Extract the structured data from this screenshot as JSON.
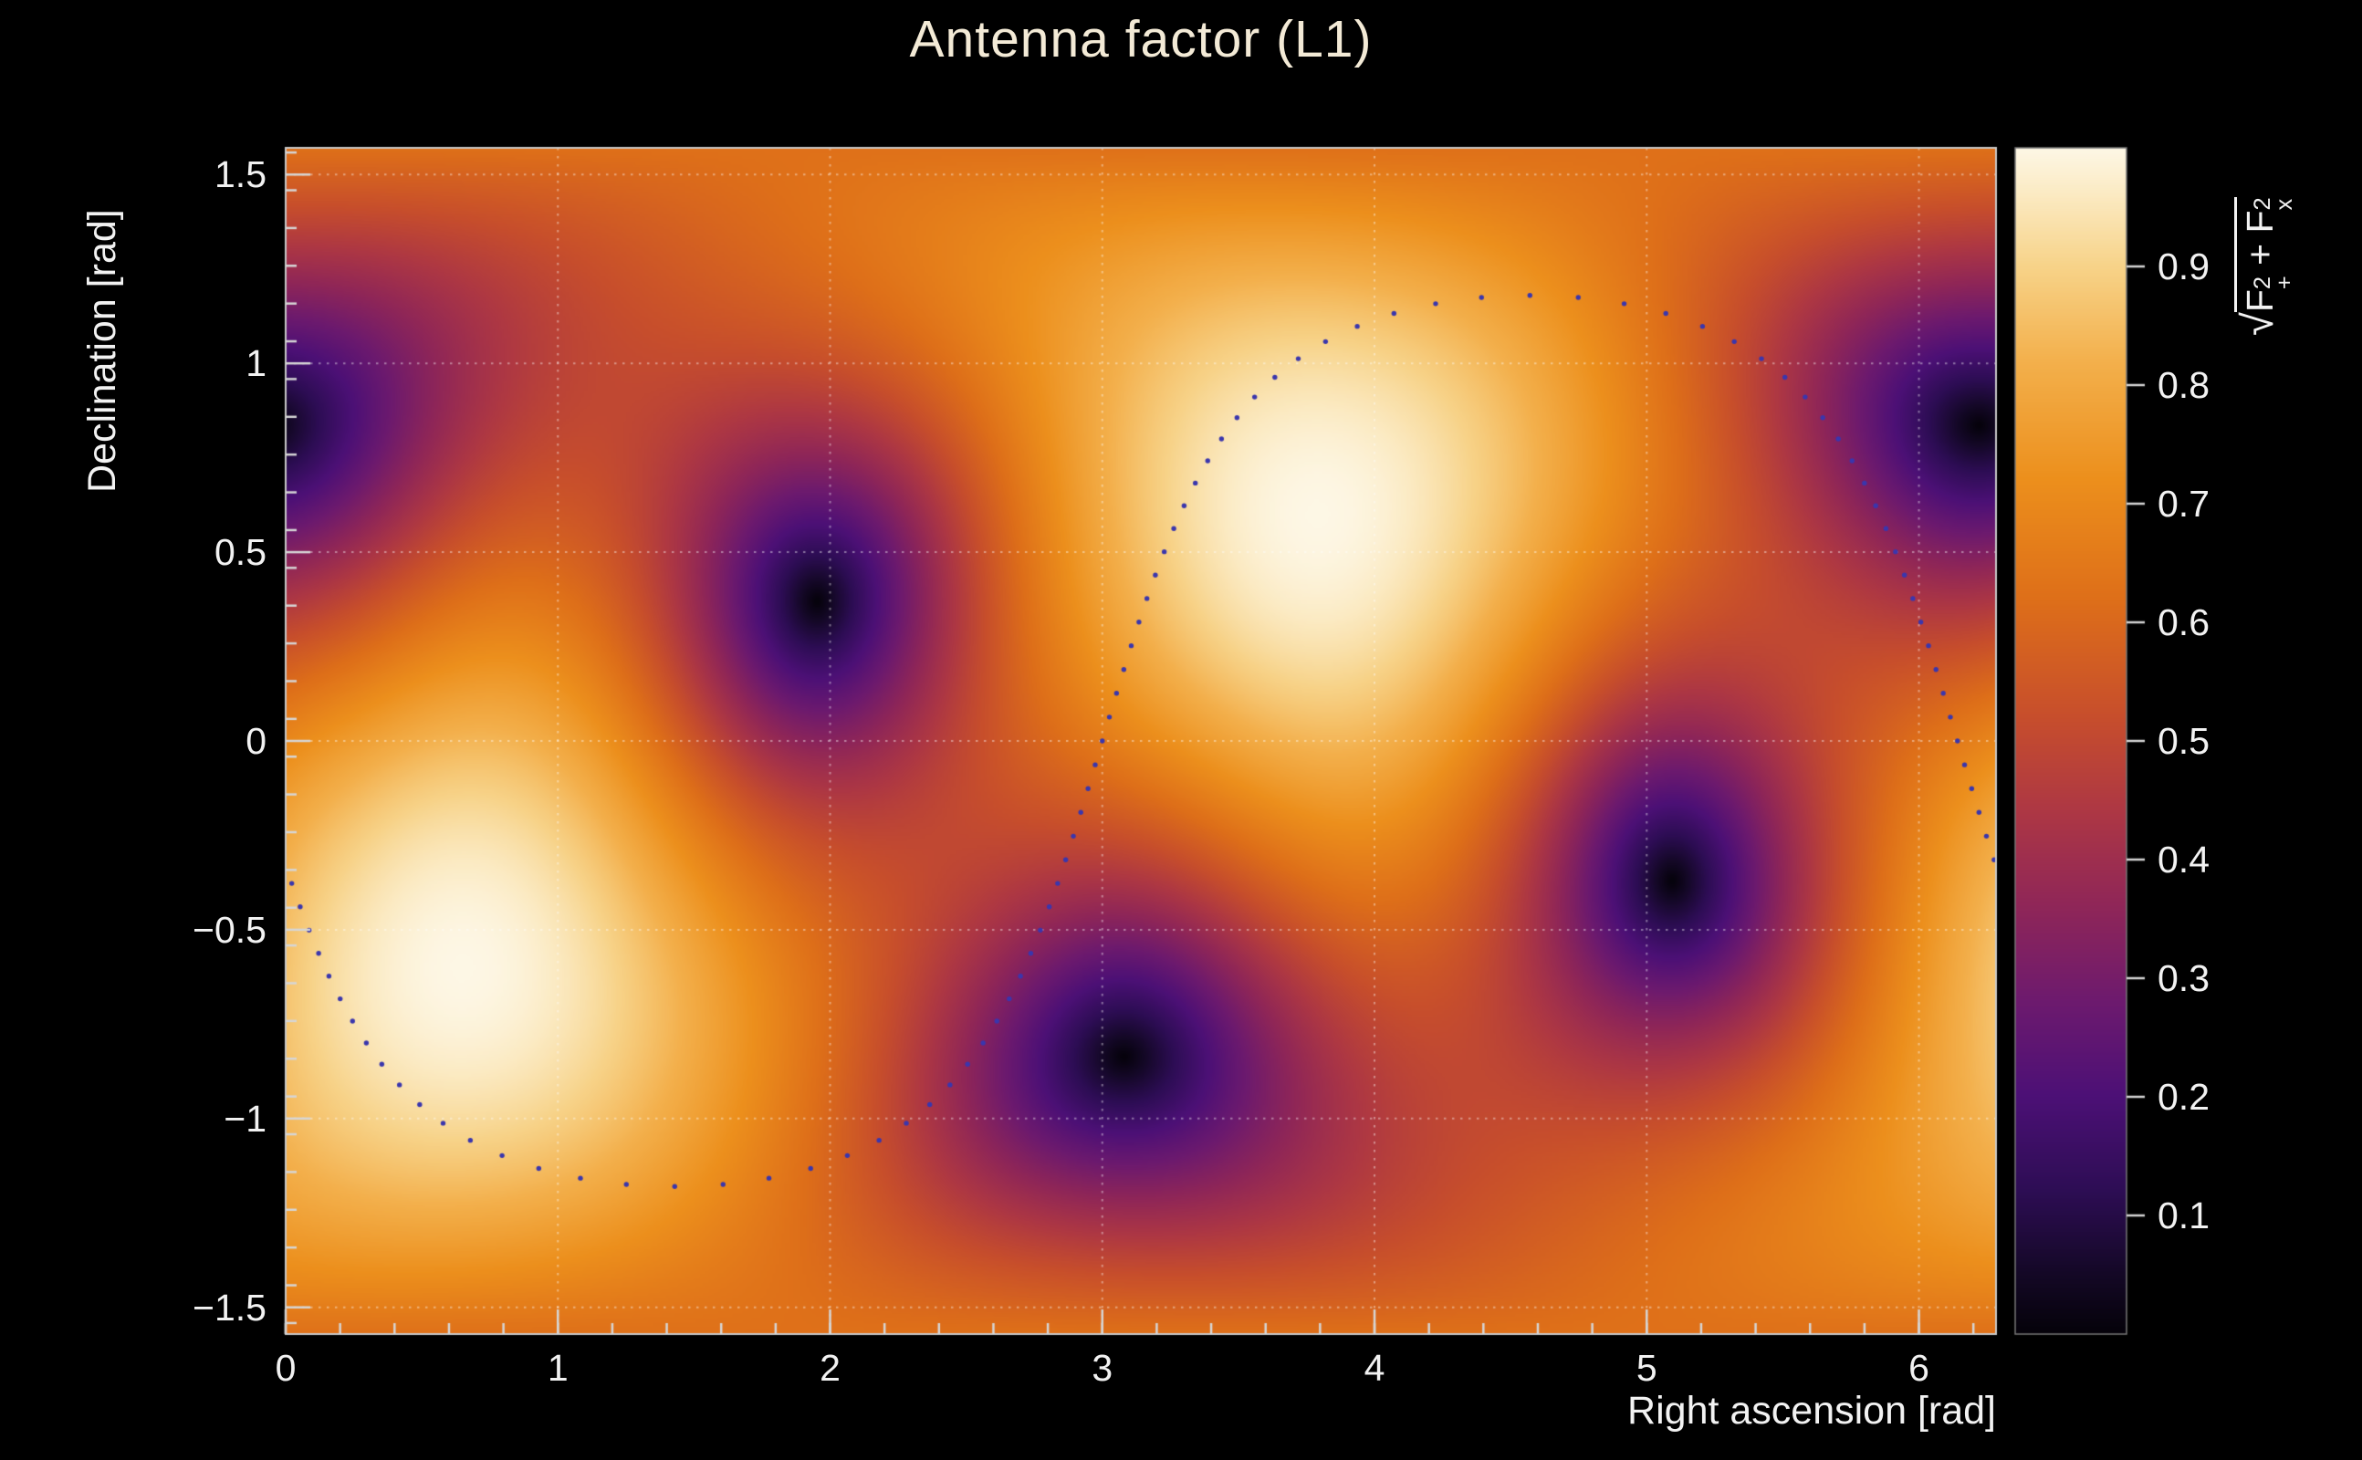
{
  "chart_data": {
    "type": "heatmap",
    "title": "Antenna factor (L1)",
    "xlabel": "Right ascension [rad]",
    "ylabel": "Declination [rad]",
    "x_range": [
      0,
      6.28319
    ],
    "y_range": [
      -1.5708,
      1.5708
    ],
    "x_ticks": {
      "values": [
        0,
        1,
        2,
        3,
        4,
        5,
        6
      ],
      "labels": [
        "0",
        "1",
        "2",
        "3",
        "4",
        "5",
        "6"
      ],
      "minor_step": 0.2
    },
    "y_ticks": {
      "values": [
        -1.5,
        -1,
        -0.5,
        0,
        0.5,
        1,
        1.5
      ],
      "labels": [
        "−1.5",
        "−1",
        "−0.5",
        "0",
        "0.5",
        "1",
        "1.5"
      ],
      "minor_step": 0.1
    },
    "colorbar": {
      "min": 0,
      "max": 1,
      "tick_values": [
        0.1,
        0.2,
        0.3,
        0.4,
        0.5,
        0.6,
        0.7,
        0.8,
        0.9
      ],
      "tick_labels": [
        "0.1",
        "0.2",
        "0.3",
        "0.4",
        "0.5",
        "0.6",
        "0.7",
        "0.8",
        "0.9"
      ],
      "label_plain": "sqrt(F_+^2 + F_x^2)",
      "label_parts": {
        "radical": "√",
        "f": "F",
        "sup": "2",
        "sub_plus": "+",
        "plus": " + ",
        "sub_x": "x"
      }
    },
    "palette": [
      [
        0.0,
        "#05020a"
      ],
      [
        0.05,
        "#140826"
      ],
      [
        0.12,
        "#2d0d54"
      ],
      [
        0.2,
        "#4c1076"
      ],
      [
        0.28,
        "#6d1a6e"
      ],
      [
        0.36,
        "#8f2658"
      ],
      [
        0.44,
        "#ad3744"
      ],
      [
        0.52,
        "#c74e2c"
      ],
      [
        0.62,
        "#de6f19"
      ],
      [
        0.72,
        "#ec8f1c"
      ],
      [
        0.82,
        "#f3b04c"
      ],
      [
        0.9,
        "#f7d389"
      ],
      [
        0.96,
        "#fbeac2"
      ],
      [
        1.0,
        "#fdf7e6"
      ]
    ],
    "field": {
      "model": "interferometer antenna pattern F = sqrt(Fplus^2 + Fcross^2), Fplus = 0.5*(1+cos^2(theta))*cos(2*phi), Fcross = cos(theta)*sin(2*phi)",
      "zenith_ra": 0.65,
      "zenith_dec": -0.6,
      "psi_rad": -0.3316,
      "maxima": [
        {
          "ra": 0.65,
          "dec": -0.6,
          "F": 1.0
        },
        {
          "ra": 3.79,
          "dec": 0.6,
          "F": 1.0
        }
      ],
      "minima": [
        {
          "ra": 1.95,
          "dec": 0.4,
          "F": 0.0
        },
        {
          "ra": 6.22,
          "dec": 0.85,
          "F": 0.0
        },
        {
          "ra": 5.09,
          "dec": -0.4,
          "F": 0.0
        },
        {
          "ra": 3.05,
          "dec": -0.85,
          "F": 0.0
        }
      ],
      "background_typical_F": 0.6
    },
    "track": {
      "type": "great-circle-dotted",
      "inclination_rad": 1.18,
      "ascending_node_ra": 3.0,
      "n_points": 92,
      "color": "#3a36ad",
      "dot_radius": 2.7
    },
    "grid": {
      "color": "rgba(255,255,255,0.42)",
      "dash": [
        2.5,
        6.5
      ]
    },
    "axis_color": "#d6d6d6",
    "frame_color": "#c9c9c9",
    "text_color": "#f2f2f2",
    "title_color": "#f3ead6",
    "background_color": "#000000"
  }
}
